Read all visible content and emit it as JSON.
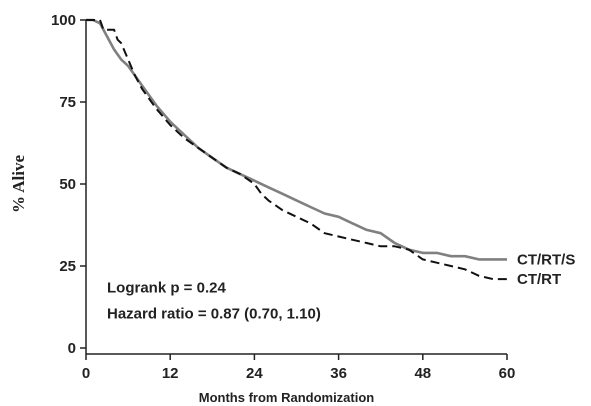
{
  "chart_data": {
    "type": "line",
    "xlabel": "Months from Randomization",
    "ylabel": "% Alive",
    "xlim": [
      0,
      60
    ],
    "ylim": [
      0,
      100
    ],
    "x_ticks": [
      0,
      12,
      24,
      36,
      48,
      60
    ],
    "y_ticks": [
      0,
      25,
      50,
      75,
      100
    ],
    "grid": false,
    "annotations": [
      "Logrank p = 0.24",
      "Hazard ratio = 0.87 (0.70, 1.10)"
    ],
    "series": [
      {
        "name": "CT/RT/S",
        "style": "solid",
        "color": "#808080",
        "x": [
          0,
          1,
          2,
          3,
          4,
          5,
          6,
          8,
          10,
          12,
          14,
          16,
          18,
          20,
          22,
          24,
          26,
          28,
          30,
          32,
          34,
          36,
          38,
          40,
          42,
          44,
          46,
          48,
          50,
          52,
          54,
          56,
          58,
          60
        ],
        "y": [
          100,
          100,
          99,
          95,
          91,
          88,
          86,
          80,
          74,
          69,
          65,
          61,
          58,
          55,
          53,
          51,
          49,
          47,
          45,
          43,
          41,
          40,
          38,
          36,
          35,
          32,
          30,
          29,
          29,
          28,
          28,
          27,
          27,
          27
        ]
      },
      {
        "name": "CT/RT",
        "style": "dashed",
        "color": "#111111",
        "x": [
          0,
          1,
          2,
          2.5,
          4,
          4.5,
          5,
          6,
          7,
          8,
          10,
          12,
          14,
          16,
          18,
          20,
          22,
          24,
          25,
          26,
          28,
          30,
          32,
          34,
          36,
          38,
          40,
          42,
          44,
          46,
          48,
          50,
          52,
          54,
          56,
          58,
          60
        ],
        "y": [
          100,
          100,
          100,
          97,
          97,
          94,
          93,
          88,
          83,
          79,
          73,
          68,
          64,
          61,
          58,
          55,
          53,
          50,
          47,
          45,
          42,
          40,
          38,
          35,
          34,
          33,
          32,
          31,
          31,
          30,
          27,
          26,
          25,
          24,
          22,
          21,
          21
        ]
      }
    ]
  }
}
